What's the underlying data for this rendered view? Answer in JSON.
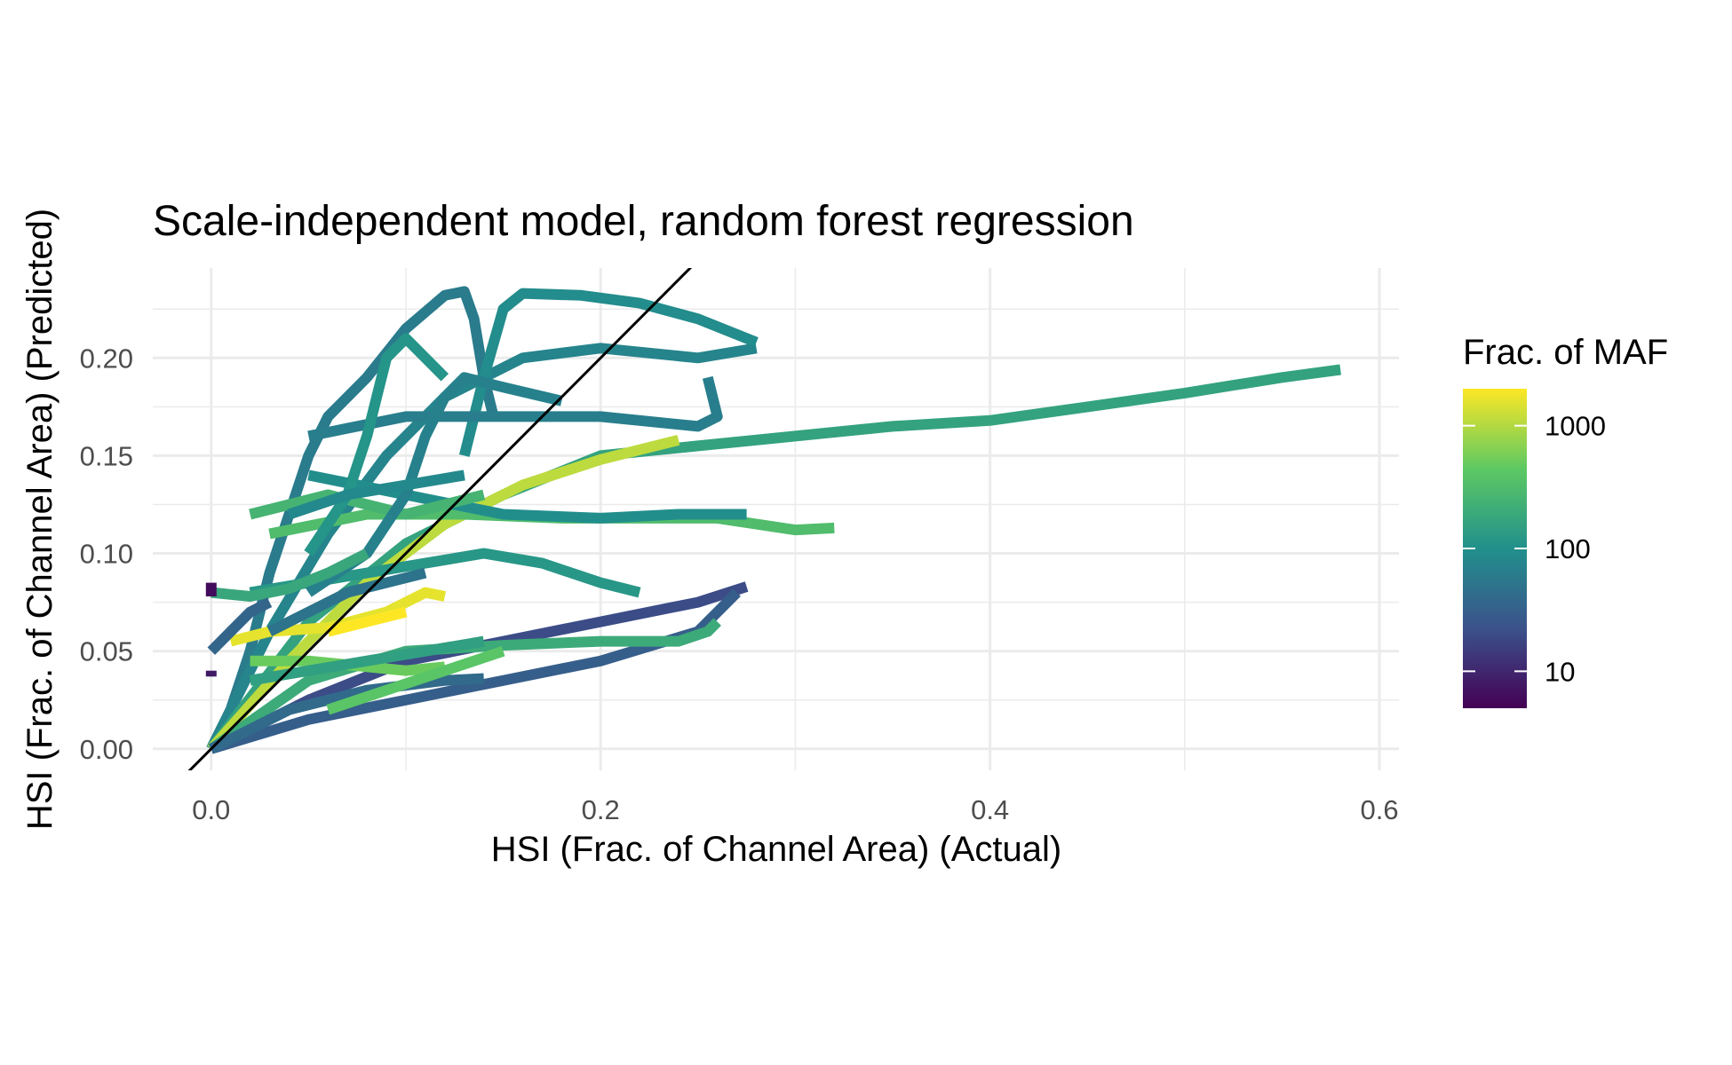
{
  "chart_data": {
    "type": "line",
    "title": "Scale-independent model, random forest regression",
    "xlabel": "HSI (Frac. of Channel Area) (Actual)",
    "ylabel": "HSI (Frac. of Channel Area) (Predicted)",
    "xlim": [
      -0.03,
      0.61
    ],
    "ylim": [
      -0.011,
      0.246
    ],
    "x_ticks": [
      0.0,
      0.2,
      0.4,
      0.6
    ],
    "x_tick_labels": [
      "0.0",
      "0.2",
      "0.4",
      "0.6"
    ],
    "y_ticks": [
      0.0,
      0.05,
      0.1,
      0.15,
      0.2
    ],
    "y_tick_labels": [
      "0.00",
      "0.05",
      "0.10",
      "0.15",
      "0.20"
    ],
    "grid": true,
    "legend": {
      "title": "Frac. of MAF",
      "position": "right",
      "scale": "log",
      "range": [
        5,
        2000
      ],
      "tick_values": [
        10,
        100,
        1000
      ],
      "tick_labels": [
        "10",
        "100",
        "1000"
      ],
      "colormap": [
        "#440154",
        "#3b528b",
        "#21908c",
        "#5dc963",
        "#fde725"
      ]
    },
    "reference_line": {
      "slope": 1,
      "intercept": 0,
      "color": "#000000"
    },
    "series": [
      {
        "maf": 60,
        "points": [
          [
            0.0,
            0.0
          ],
          [
            0.01,
            0.02
          ],
          [
            0.02,
            0.05
          ],
          [
            0.03,
            0.09
          ],
          [
            0.04,
            0.12
          ],
          [
            0.05,
            0.15
          ],
          [
            0.06,
            0.17
          ],
          [
            0.08,
            0.19
          ],
          [
            0.1,
            0.215
          ],
          [
            0.12,
            0.232
          ],
          [
            0.13,
            0.234
          ],
          [
            0.135,
            0.22
          ],
          [
            0.14,
            0.19
          ],
          [
            0.145,
            0.17
          ]
        ]
      },
      {
        "maf": 75,
        "points": [
          [
            0.0,
            0.0
          ],
          [
            0.03,
            0.06
          ],
          [
            0.06,
            0.11
          ],
          [
            0.09,
            0.15
          ],
          [
            0.12,
            0.18
          ],
          [
            0.16,
            0.2
          ],
          [
            0.2,
            0.205
          ],
          [
            0.25,
            0.2
          ],
          [
            0.28,
            0.205
          ]
        ]
      },
      {
        "maf": 90,
        "points": [
          [
            0.13,
            0.15
          ],
          [
            0.14,
            0.19
          ],
          [
            0.15,
            0.225
          ],
          [
            0.16,
            0.233
          ],
          [
            0.19,
            0.232
          ],
          [
            0.22,
            0.228
          ],
          [
            0.25,
            0.22
          ],
          [
            0.28,
            0.208
          ]
        ]
      },
      {
        "maf": 160,
        "points": [
          [
            0.0,
            0.0
          ],
          [
            0.05,
            0.065
          ],
          [
            0.1,
            0.105
          ],
          [
            0.15,
            0.13
          ],
          [
            0.2,
            0.15
          ],
          [
            0.25,
            0.155
          ],
          [
            0.3,
            0.16
          ],
          [
            0.35,
            0.165
          ],
          [
            0.4,
            0.168
          ],
          [
            0.45,
            0.175
          ],
          [
            0.5,
            0.182
          ],
          [
            0.55,
            0.19
          ],
          [
            0.58,
            0.194
          ]
        ]
      },
      {
        "maf": 1100,
        "points": [
          [
            0.0,
            0.0
          ],
          [
            0.04,
            0.045
          ],
          [
            0.08,
            0.085
          ],
          [
            0.12,
            0.115
          ],
          [
            0.16,
            0.135
          ],
          [
            0.2,
            0.148
          ],
          [
            0.24,
            0.158
          ]
        ]
      },
      {
        "maf": 320,
        "points": [
          [
            0.03,
            0.11
          ],
          [
            0.08,
            0.12
          ],
          [
            0.13,
            0.12
          ],
          [
            0.18,
            0.118
          ],
          [
            0.22,
            0.118
          ],
          [
            0.26,
            0.118
          ],
          [
            0.3,
            0.112
          ],
          [
            0.32,
            0.113
          ]
        ]
      },
      {
        "maf": 95,
        "points": [
          [
            0.05,
            0.14
          ],
          [
            0.1,
            0.13
          ],
          [
            0.15,
            0.12
          ],
          [
            0.2,
            0.118
          ],
          [
            0.24,
            0.12
          ],
          [
            0.275,
            0.12
          ]
        ]
      },
      {
        "maf": 65,
        "points": [
          [
            0.05,
            0.16
          ],
          [
            0.1,
            0.17
          ],
          [
            0.15,
            0.17
          ],
          [
            0.2,
            0.17
          ],
          [
            0.25,
            0.165
          ],
          [
            0.26,
            0.17
          ],
          [
            0.255,
            0.19
          ]
        ]
      },
      {
        "maf": 20,
        "points": [
          [
            0.0,
            0.0
          ],
          [
            0.05,
            0.025
          ],
          [
            0.1,
            0.045
          ],
          [
            0.15,
            0.055
          ],
          [
            0.2,
            0.065
          ],
          [
            0.25,
            0.075
          ],
          [
            0.275,
            0.083
          ]
        ]
      },
      {
        "maf": 30,
        "points": [
          [
            0.0,
            0.0
          ],
          [
            0.05,
            0.015
          ],
          [
            0.1,
            0.025
          ],
          [
            0.15,
            0.035
          ],
          [
            0.2,
            0.045
          ],
          [
            0.25,
            0.06
          ],
          [
            0.27,
            0.08
          ]
        ]
      },
      {
        "maf": 200,
        "points": [
          [
            0.0,
            0.0
          ],
          [
            0.05,
            0.035
          ],
          [
            0.1,
            0.05
          ],
          [
            0.15,
            0.053
          ],
          [
            0.2,
            0.055
          ],
          [
            0.24,
            0.055
          ],
          [
            0.255,
            0.06
          ],
          [
            0.26,
            0.065
          ]
        ]
      },
      {
        "maf": 1600,
        "points": [
          [
            0.01,
            0.055
          ],
          [
            0.03,
            0.06
          ],
          [
            0.06,
            0.062
          ],
          [
            0.09,
            0.07
          ],
          [
            0.11,
            0.08
          ],
          [
            0.12,
            0.078
          ]
        ]
      },
      {
        "maf": 500,
        "points": [
          [
            0.02,
            0.045
          ],
          [
            0.05,
            0.045
          ],
          [
            0.08,
            0.042
          ],
          [
            0.1,
            0.04
          ],
          [
            0.12,
            0.042
          ]
        ]
      },
      {
        "maf": 150,
        "points": [
          [
            0.02,
            0.035
          ],
          [
            0.05,
            0.04
          ],
          [
            0.08,
            0.045
          ],
          [
            0.11,
            0.05
          ],
          [
            0.14,
            0.055
          ]
        ]
      },
      {
        "maf": 40,
        "points": [
          [
            0.0,
            0.0
          ],
          [
            0.04,
            0.02
          ],
          [
            0.08,
            0.03
          ],
          [
            0.12,
            0.035
          ],
          [
            0.14,
            0.036
          ]
        ]
      },
      {
        "maf": 120,
        "points": [
          [
            0.02,
            0.08
          ],
          [
            0.05,
            0.085
          ],
          [
            0.08,
            0.09
          ],
          [
            0.11,
            0.095
          ],
          [
            0.14,
            0.1
          ],
          [
            0.17,
            0.095
          ],
          [
            0.2,
            0.085
          ],
          [
            0.22,
            0.08
          ]
        ]
      },
      {
        "maf": 250,
        "points": [
          [
            0.02,
            0.12
          ],
          [
            0.04,
            0.125
          ],
          [
            0.06,
            0.13
          ],
          [
            0.08,
            0.125
          ],
          [
            0.1,
            0.12
          ],
          [
            0.12,
            0.125
          ],
          [
            0.14,
            0.13
          ]
        ]
      },
      {
        "maf": 70,
        "points": [
          [
            0.05,
            0.08
          ],
          [
            0.08,
            0.1
          ],
          [
            0.1,
            0.13
          ],
          [
            0.11,
            0.16
          ],
          [
            0.12,
            0.18
          ],
          [
            0.13,
            0.19
          ],
          [
            0.15,
            0.185
          ],
          [
            0.18,
            0.178
          ]
        ]
      },
      {
        "maf": 110,
        "points": [
          [
            0.05,
            0.1
          ],
          [
            0.07,
            0.13
          ],
          [
            0.08,
            0.16
          ],
          [
            0.09,
            0.2
          ],
          [
            0.1,
            0.21
          ],
          [
            0.11,
            0.2
          ],
          [
            0.12,
            0.19
          ]
        ]
      },
      {
        "maf": 50,
        "points": [
          [
            0.03,
            0.06
          ],
          [
            0.05,
            0.07
          ],
          [
            0.07,
            0.08
          ],
          [
            0.09,
            0.085
          ],
          [
            0.11,
            0.09
          ]
        ]
      },
      {
        "maf": 180,
        "points": [
          [
            0.0,
            0.08
          ],
          [
            0.02,
            0.078
          ],
          [
            0.04,
            0.082
          ],
          [
            0.06,
            0.09
          ],
          [
            0.08,
            0.1
          ]
        ]
      },
      {
        "maf": 6,
        "points": [
          [
            0.0,
            0.085
          ],
          [
            0.0,
            0.078
          ]
        ]
      },
      {
        "maf": 8,
        "points": [
          [
            0.0,
            0.04
          ],
          [
            0.0,
            0.037
          ]
        ]
      },
      {
        "maf": 85,
        "points": [
          [
            0.04,
            0.12
          ],
          [
            0.07,
            0.13
          ],
          [
            0.1,
            0.135
          ],
          [
            0.13,
            0.14
          ]
        ]
      },
      {
        "maf": 400,
        "points": [
          [
            0.06,
            0.02
          ],
          [
            0.09,
            0.03
          ],
          [
            0.12,
            0.04
          ],
          [
            0.15,
            0.05
          ]
        ]
      },
      {
        "maf": 2000,
        "points": [
          [
            0.06,
            0.06
          ],
          [
            0.08,
            0.065
          ],
          [
            0.1,
            0.07
          ]
        ]
      },
      {
        "maf": 35,
        "points": [
          [
            0.0,
            0.05
          ],
          [
            0.01,
            0.06
          ],
          [
            0.02,
            0.07
          ],
          [
            0.03,
            0.075
          ]
        ]
      }
    ]
  }
}
